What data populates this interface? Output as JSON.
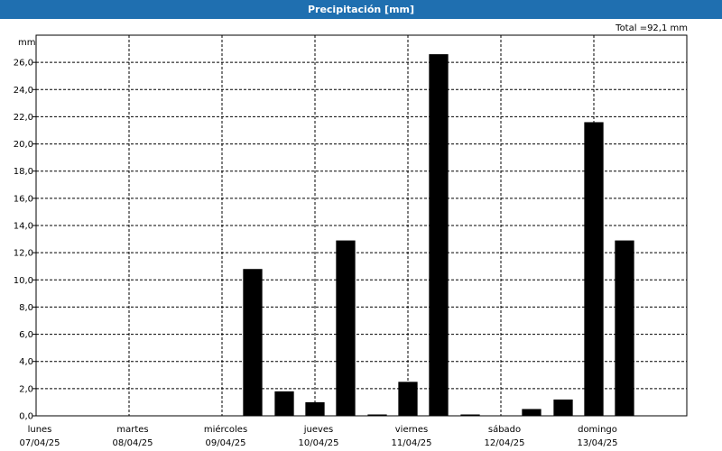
{
  "window": {
    "title": "Precipitación [mm]"
  },
  "total_label": "Total =92,1 mm",
  "chart_data": {
    "type": "bar",
    "title": "Precipitación [mm]",
    "ylabel": "mm",
    "ylim": [
      0,
      28
    ],
    "yticks": [
      "0,0",
      "2,0",
      "4,0",
      "6,0",
      "8,0",
      "10,0",
      "12,0",
      "14,0",
      "16,0",
      "18,0",
      "20,0",
      "22,0",
      "24,0",
      "26,0"
    ],
    "xlim": [
      0,
      7
    ],
    "x_ticks": [
      {
        "day": "lunes",
        "date": "07/04/25"
      },
      {
        "day": "martes",
        "date": "08/04/25"
      },
      {
        "day": "miércoles",
        "date": "09/04/25"
      },
      {
        "day": "jueves",
        "date": "10/04/25"
      },
      {
        "day": "viernes",
        "date": "11/04/25"
      },
      {
        "day": "sábado",
        "date": "12/04/25"
      },
      {
        "day": "domingo",
        "date": "13/04/25"
      }
    ],
    "bars": [
      {
        "x": 2.0,
        "value": 0.0
      },
      {
        "x": 2.33,
        "value": 10.8
      },
      {
        "x": 2.67,
        "value": 1.8
      },
      {
        "x": 3.0,
        "value": 1.0
      },
      {
        "x": 3.33,
        "value": 12.9
      },
      {
        "x": 3.67,
        "value": 0.1
      },
      {
        "x": 4.0,
        "value": 2.5
      },
      {
        "x": 4.33,
        "value": 26.6
      },
      {
        "x": 4.67,
        "value": 0.1
      },
      {
        "x": 5.0,
        "value": 0.0
      },
      {
        "x": 5.33,
        "value": 0.5
      },
      {
        "x": 5.67,
        "value": 1.2
      },
      {
        "x": 6.0,
        "value": 21.6
      },
      {
        "x": 6.33,
        "value": 12.9
      }
    ],
    "bar_color": "#000000",
    "grid": true
  }
}
